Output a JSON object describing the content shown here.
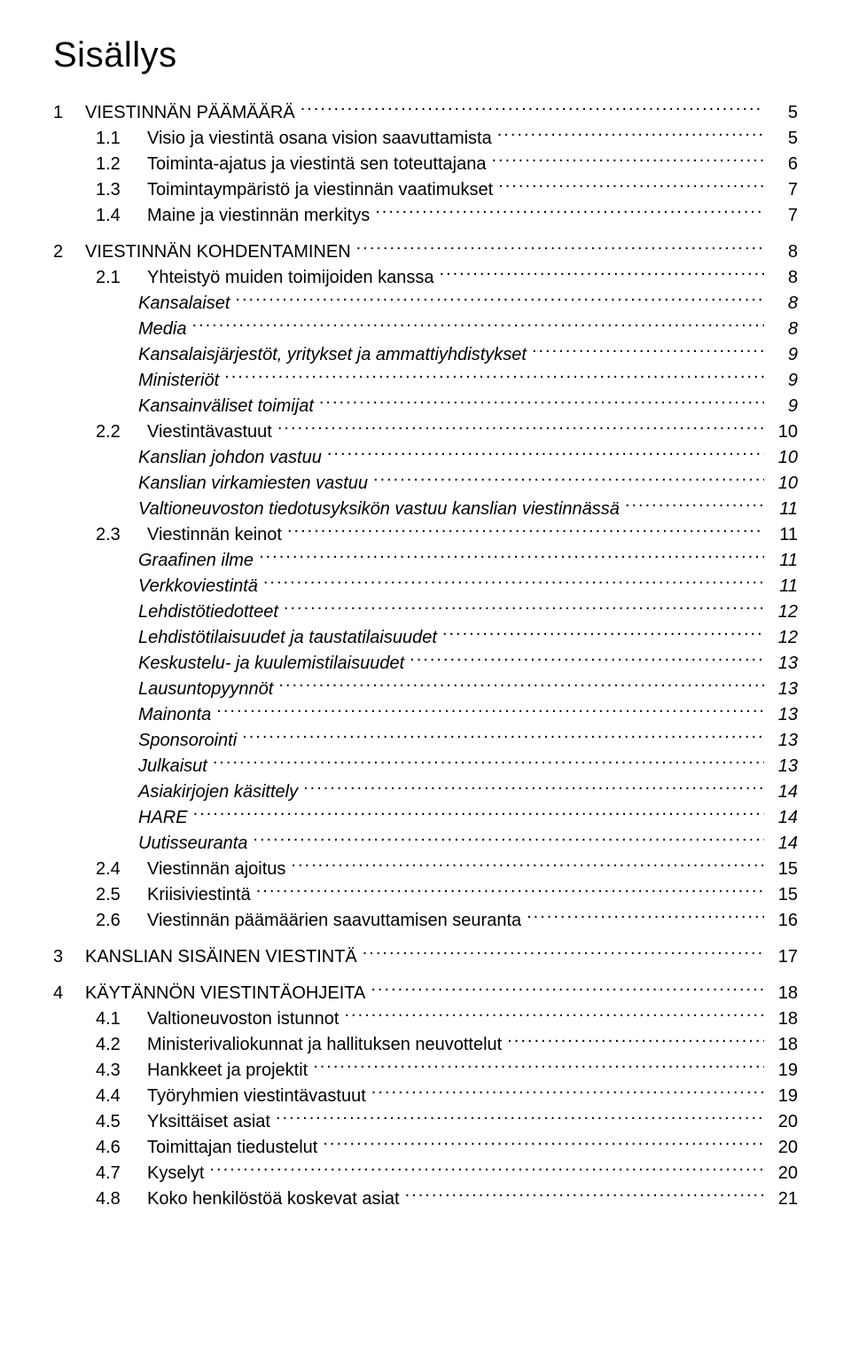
{
  "title": "Sisällys",
  "typography": {
    "title_fontsize": 40,
    "row_fontsize": 20,
    "font_family": "Arial",
    "text_color": "#000000",
    "background_color": "#ffffff",
    "line_height": 1.45
  },
  "entries": [
    {
      "level": 1,
      "num": "1",
      "label": "VIESTINNÄN PÄÄMÄÄRÄ",
      "page": "5"
    },
    {
      "level": 2,
      "num": "1.1",
      "label": "Visio ja viestintä osana vision saavuttamista",
      "page": "5"
    },
    {
      "level": 2,
      "num": "1.2",
      "label": "Toiminta-ajatus ja viestintä sen toteuttajana",
      "page": "6"
    },
    {
      "level": 2,
      "num": "1.3",
      "label": "Toimintaympäristö ja viestinnän vaatimukset",
      "page": "7"
    },
    {
      "level": 2,
      "num": "1.4",
      "label": "Maine ja viestinnän merkitys",
      "page": "7"
    },
    {
      "level": 1,
      "num": "2",
      "label": "VIESTINNÄN KOHDENTAMINEN",
      "page": "8"
    },
    {
      "level": 2,
      "num": "2.1",
      "label": "Yhteistyö muiden toimijoiden kanssa",
      "page": "8"
    },
    {
      "level": 3,
      "num": "",
      "label": "Kansalaiset",
      "page": "8"
    },
    {
      "level": 3,
      "num": "",
      "label": "Media",
      "page": "8"
    },
    {
      "level": 3,
      "num": "",
      "label": "Kansalaisjärjestöt, yritykset ja ammattiyhdistykset",
      "page": "9"
    },
    {
      "level": 3,
      "num": "",
      "label": "Ministeriöt",
      "page": "9"
    },
    {
      "level": 3,
      "num": "",
      "label": "Kansainväliset toimijat",
      "page": "9"
    },
    {
      "level": 2,
      "num": "2.2",
      "label": "Viestintävastuut",
      "page": "10"
    },
    {
      "level": 3,
      "num": "",
      "label": "Kanslian johdon vastuu",
      "page": "10"
    },
    {
      "level": 3,
      "num": "",
      "label": "Kanslian virkamiesten vastuu",
      "page": "10"
    },
    {
      "level": 3,
      "num": "",
      "label": "Valtioneuvoston tiedotusyksikön vastuu kanslian viestinnässä",
      "page": "11"
    },
    {
      "level": 2,
      "num": "2.3",
      "label": "Viestinnän keinot",
      "page": "11"
    },
    {
      "level": 3,
      "num": "",
      "label": "Graafinen ilme",
      "page": "11"
    },
    {
      "level": 3,
      "num": "",
      "label": "Verkkoviestintä",
      "page": "11"
    },
    {
      "level": 3,
      "num": "",
      "label": "Lehdistötiedotteet",
      "page": "12"
    },
    {
      "level": 3,
      "num": "",
      "label": "Lehdistötilaisuudet ja taustatilaisuudet",
      "page": "12"
    },
    {
      "level": 3,
      "num": "",
      "label": "Keskustelu- ja kuulemistilaisuudet",
      "page": "13"
    },
    {
      "level": 3,
      "num": "",
      "label": "Lausuntopyynnöt",
      "page": "13"
    },
    {
      "level": 3,
      "num": "",
      "label": "Mainonta",
      "page": "13"
    },
    {
      "level": 3,
      "num": "",
      "label": "Sponsorointi",
      "page": "13"
    },
    {
      "level": 3,
      "num": "",
      "label": "Julkaisut",
      "page": "13"
    },
    {
      "level": 3,
      "num": "",
      "label": "Asiakirjojen käsittely",
      "page": "14"
    },
    {
      "level": 3,
      "num": "",
      "label": "HARE",
      "page": "14"
    },
    {
      "level": 3,
      "num": "",
      "label": "Uutisseuranta",
      "page": "14"
    },
    {
      "level": 2,
      "num": "2.4",
      "label": "Viestinnän ajoitus",
      "page": "15"
    },
    {
      "level": 2,
      "num": "2.5",
      "label": "Kriisiviestintä",
      "page": "15"
    },
    {
      "level": 2,
      "num": "2.6",
      "label": "Viestinnän päämäärien saavuttamisen seuranta",
      "page": "16"
    },
    {
      "level": 1,
      "num": "3",
      "label": "KANSLIAN SISÄINEN VIESTINTÄ",
      "page": "17"
    },
    {
      "level": 1,
      "num": "4",
      "label": "KÄYTÄNNÖN VIESTINTÄOHJEITA",
      "page": "18"
    },
    {
      "level": 2,
      "num": "4.1",
      "label": "Valtioneuvoston istunnot",
      "page": "18"
    },
    {
      "level": 2,
      "num": "4.2",
      "label": "Ministerivaliokunnat ja hallituksen neuvottelut",
      "page": "18"
    },
    {
      "level": 2,
      "num": "4.3",
      "label": "Hankkeet ja projektit",
      "page": "19"
    },
    {
      "level": 2,
      "num": "4.4",
      "label": "Työryhmien viestintävastuut",
      "page": "19"
    },
    {
      "level": 2,
      "num": "4.5",
      "label": "Yksittäiset asiat",
      "page": "20"
    },
    {
      "level": 2,
      "num": "4.6",
      "label": "Toimittajan tiedustelut",
      "page": "20"
    },
    {
      "level": 2,
      "num": "4.7",
      "label": "Kyselyt",
      "page": "20"
    },
    {
      "level": 2,
      "num": "4.8",
      "label": "Koko henkilöstöä koskevat asiat",
      "page": "21"
    }
  ]
}
